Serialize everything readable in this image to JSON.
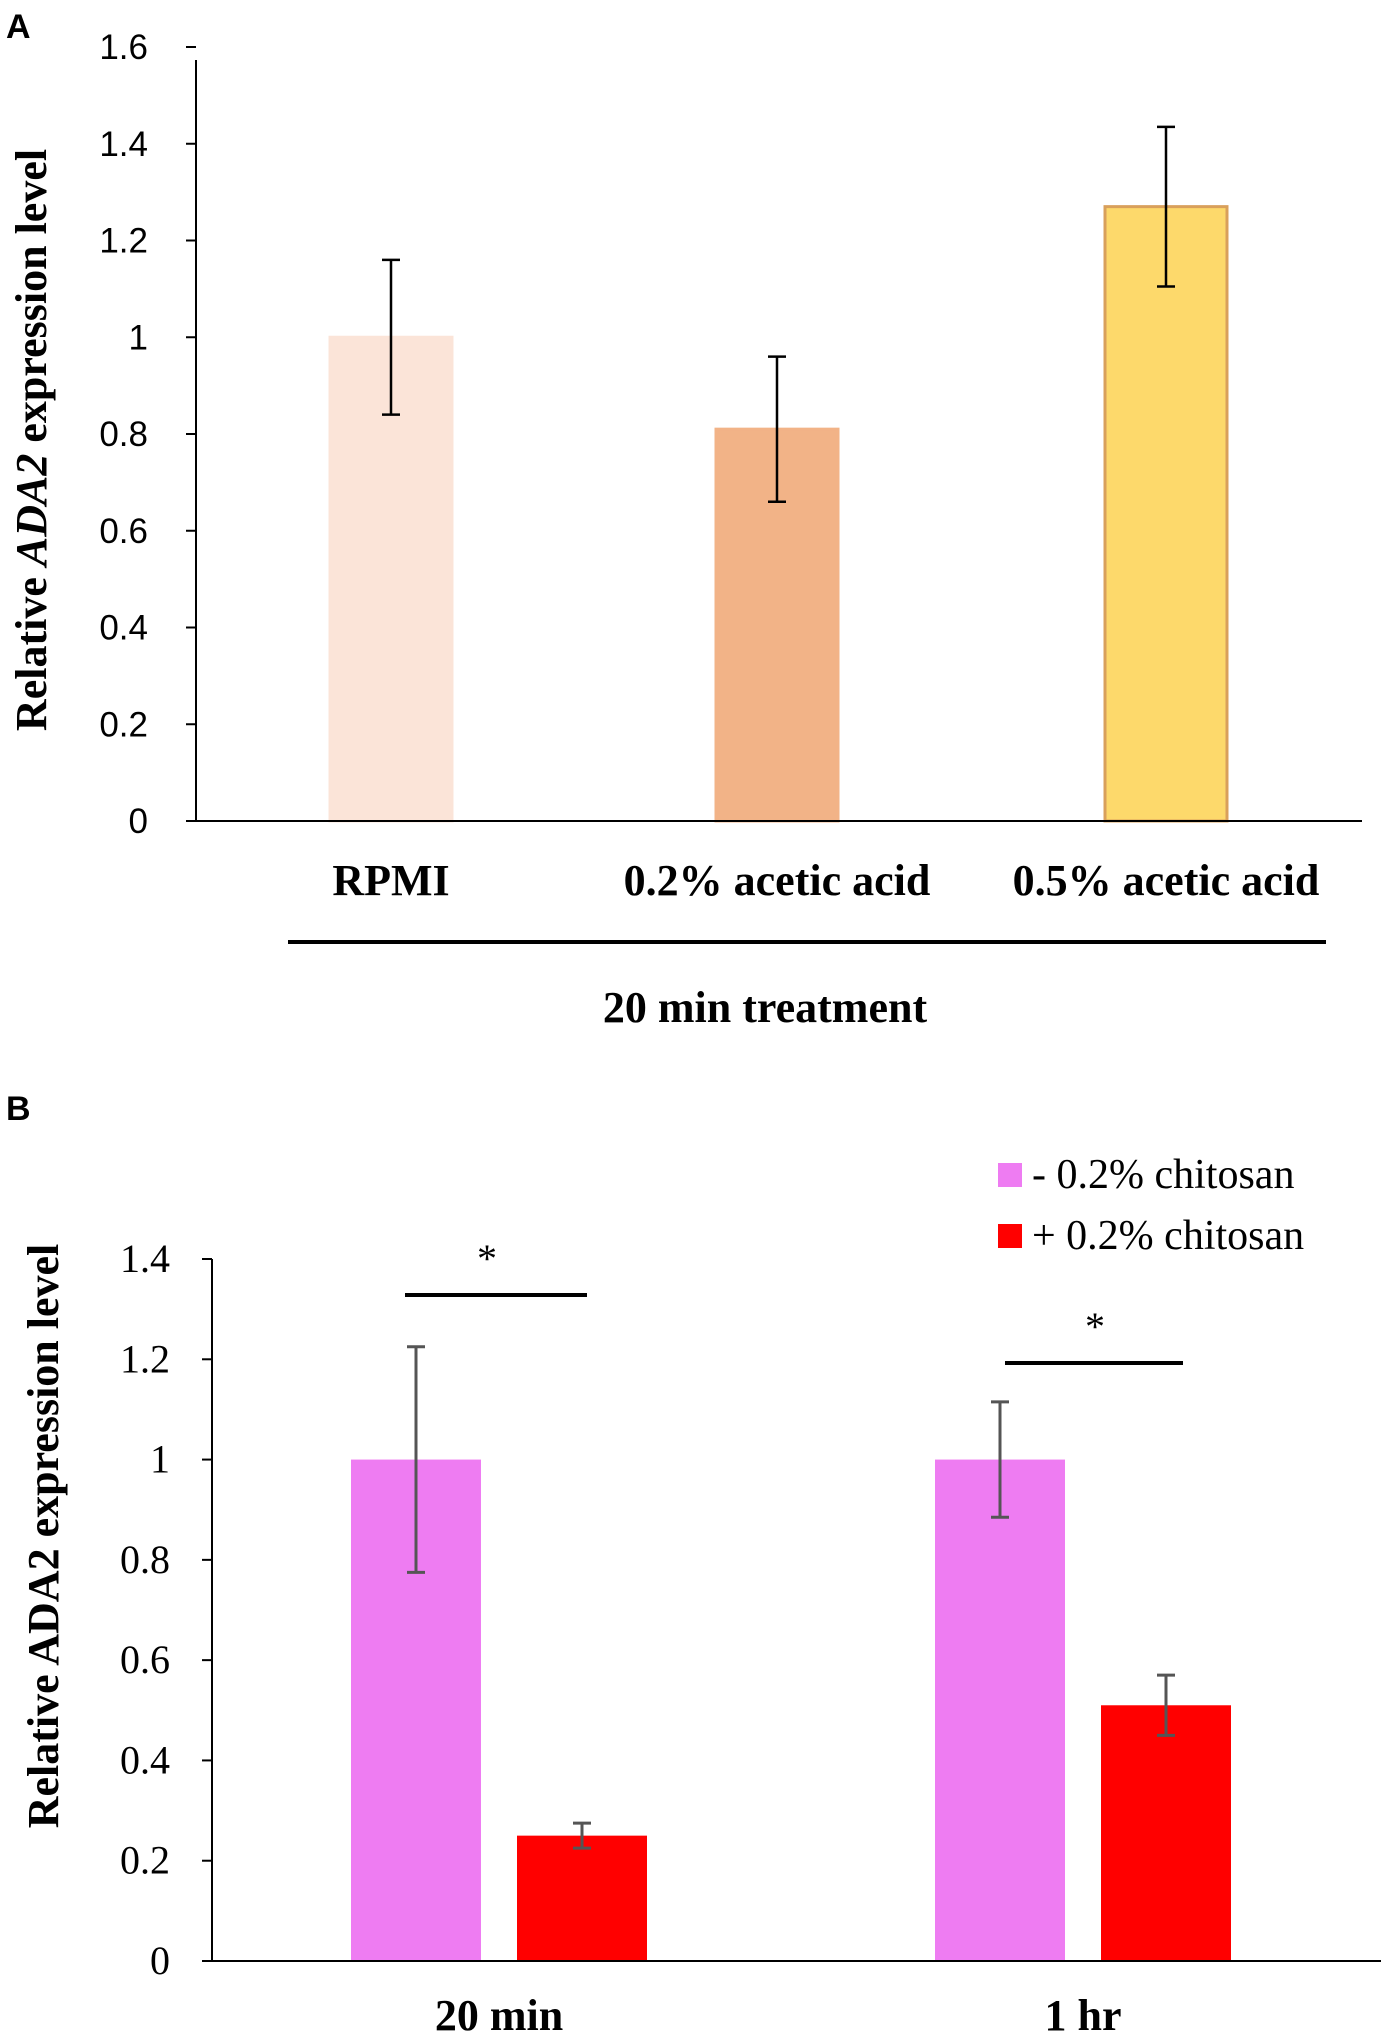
{
  "chart_data": [
    {
      "panel_label": "A",
      "type": "bar",
      "title": "",
      "ylabel_parts": [
        "Relative ",
        "ADA2",
        " expression level"
      ],
      "xlabel": "20 min treatment",
      "ylim": [
        0,
        1.6
      ],
      "yticks": [
        "0",
        "0.2",
        "0.4",
        "0.6",
        "0.8",
        "1",
        "1.2",
        "1.4",
        "1.6"
      ],
      "grid": false,
      "categories": [
        "RPMI",
        "0.2% acetic acid",
        "0.5% acetic acid"
      ],
      "values": [
        1.0,
        0.81,
        1.27
      ],
      "errors": [
        0.16,
        0.15,
        0.165
      ],
      "colors": [
        "#fbe4d8",
        "#f2b387",
        "#fdd96b"
      ],
      "edge_colors": [
        "#fbe4d8",
        "#f2b387",
        "#d9a05b"
      ]
    },
    {
      "panel_label": "B",
      "type": "bar",
      "title": "",
      "ylabel": "Relative ADA2 expression level",
      "ylim": [
        0,
        1.4
      ],
      "yticks": [
        "0",
        "0.2",
        "0.4",
        "0.6",
        "0.8",
        "1",
        "1.2",
        "1.4"
      ],
      "grid": false,
      "categories": [
        "20 min",
        "1 hr"
      ],
      "series": [
        {
          "name": "- 0.2% chitosan",
          "color": "#ee7cf2",
          "values": [
            1.0,
            1.0
          ],
          "errors": [
            0.225,
            0.115
          ]
        },
        {
          "name": "+ 0.2% chitosan",
          "color": "#ff0000",
          "values": [
            0.25,
            0.51
          ],
          "errors": [
            0.025,
            0.06
          ]
        }
      ],
      "legend_position": "top-right",
      "annotations": [
        "*",
        "*"
      ]
    }
  ]
}
